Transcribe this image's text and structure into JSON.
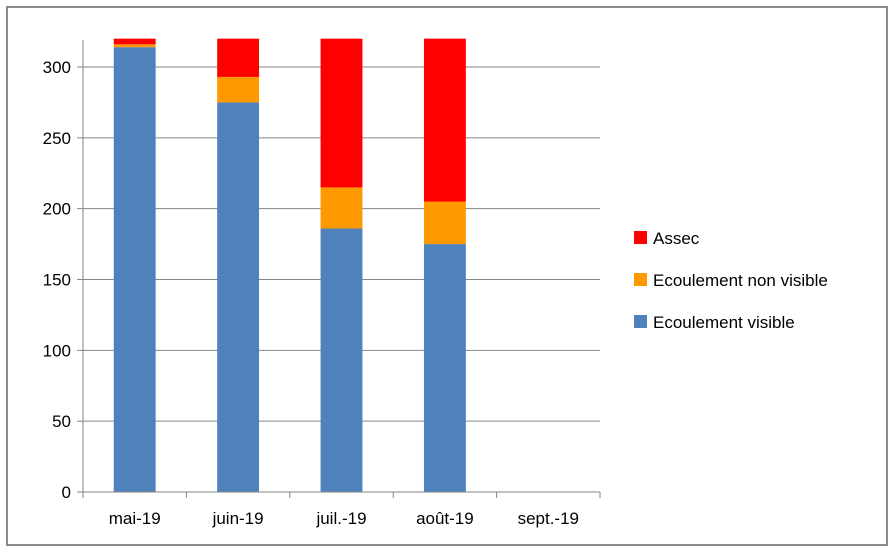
{
  "chart_data": {
    "type": "bar",
    "stacked": true,
    "title": "",
    "xlabel": "",
    "ylabel": "",
    "categories": [
      "mai-19",
      "juin-19",
      "juil.-19",
      "août-19",
      "sept.-19"
    ],
    "ylim": [
      0,
      320
    ],
    "yticks": [
      0,
      50,
      100,
      150,
      200,
      250,
      300
    ],
    "grid": true,
    "legend_position": "right",
    "series": [
      {
        "name": "Ecoulement visible",
        "color": "#4f81bd",
        "values": [
          314,
          275,
          186,
          175,
          0
        ]
      },
      {
        "name": "Ecoulement non visible",
        "color": "#ff9900",
        "values": [
          2,
          18,
          29,
          30,
          0
        ]
      },
      {
        "name": "Assec",
        "color": "#ff0000",
        "values": [
          4,
          27,
          105,
          115,
          0
        ]
      }
    ],
    "legend_order": [
      "Assec",
      "Ecoulement non visible",
      "Ecoulement visible"
    ]
  }
}
